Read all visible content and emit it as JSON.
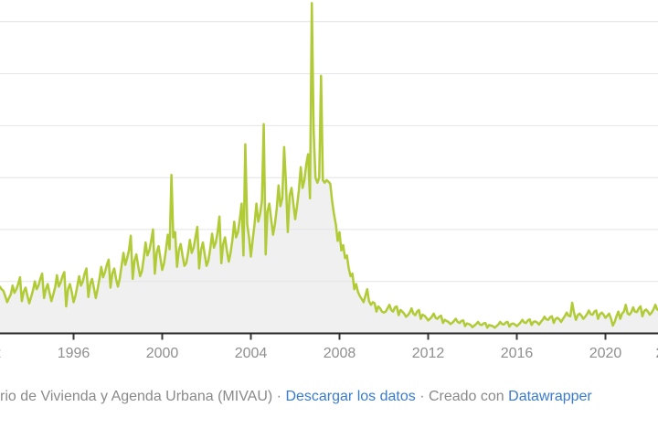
{
  "chart_data": {
    "type": "area",
    "title": "",
    "description": "Monthly time series (line with light gray area fill) from late 1992 to 2022; long rise through the 1990s and 2000s, extreme spike in late 2006, collapse 2008-2013, shallow recovery afterwards. Y-axis labels are cropped out of the visible frame.",
    "x_unit": "decimal_year",
    "x_start": 1992.6667,
    "x_step_years": 0.0833333,
    "x_tick_years": [
      1996,
      2000,
      2004,
      2008,
      2012,
      2016,
      2020
    ],
    "edge_partial_tick_years": [
      1992,
      2023
    ],
    "y_axis": {
      "labels_visible": false,
      "unit": "gridline intervals (numeric y labels cropped off left edge)",
      "gridlines": [
        1,
        2,
        3,
        4,
        5,
        6
      ],
      "ylim": [
        0,
        6.5
      ]
    },
    "peak": {
      "x_decimal_year": 2006.75,
      "value": 6.36
    },
    "values": [
      0.9,
      0.85,
      0.82,
      0.72,
      0.6,
      0.68,
      0.75,
      0.92,
      0.78,
      0.85,
      0.95,
      1.08,
      0.62,
      0.8,
      0.88,
      0.72,
      0.58,
      0.7,
      0.82,
      1.0,
      0.85,
      0.92,
      1.05,
      1.15,
      0.68,
      0.85,
      0.95,
      0.78,
      0.62,
      0.75,
      0.88,
      1.12,
      0.9,
      0.98,
      1.1,
      1.18,
      0.52,
      0.85,
      0.95,
      0.8,
      0.6,
      0.72,
      0.9,
      1.1,
      0.92,
      1.0,
      1.15,
      1.25,
      0.7,
      0.95,
      1.05,
      0.88,
      0.68,
      0.85,
      1.05,
      1.28,
      1.08,
      1.18,
      1.32,
      1.42,
      0.88,
      1.15,
      1.25,
      1.05,
      0.9,
      1.05,
      1.3,
      1.55,
      1.32,
      1.45,
      1.6,
      1.88,
      1.05,
      1.4,
      1.52,
      1.3,
      1.1,
      1.2,
      1.45,
      1.75,
      1.5,
      1.6,
      1.78,
      2.0,
      1.15,
      1.55,
      1.68,
      1.45,
      1.22,
      1.35,
      1.6,
      1.9,
      1.62,
      3.05,
      1.85,
      1.95,
      1.28,
      1.6,
      1.72,
      1.5,
      1.3,
      1.35,
      1.55,
      1.8,
      1.55,
      1.65,
      1.85,
      2.05,
      1.25,
      1.6,
      1.75,
      1.52,
      1.3,
      1.4,
      1.62,
      1.92,
      1.65,
      1.75,
      1.95,
      2.25,
      1.35,
      1.72,
      1.85,
      1.6,
      1.38,
      1.55,
      1.8,
      2.15,
      1.85,
      1.95,
      2.2,
      2.5,
      1.5,
      3.64,
      2.1,
      1.85,
      1.48,
      1.8,
      2.1,
      2.5,
      2.15,
      2.3,
      2.55,
      4.03,
      1.52,
      2.35,
      2.5,
      2.2,
      1.9,
      2.1,
      2.4,
      2.85,
      2.45,
      2.6,
      3.59,
      2.9,
      1.95,
      2.65,
      2.8,
      2.5,
      2.2,
      2.45,
      2.75,
      3.2,
      2.8,
      2.95,
      3.25,
      3.45,
      2.6,
      6.36,
      3.9,
      3.0,
      2.9,
      3.0,
      4.96,
      2.95,
      2.9,
      2.95,
      2.92,
      2.88,
      2.55,
      2.3,
      2.1,
      1.78,
      1.95,
      1.6,
      1.7,
      1.45,
      1.5,
      1.25,
      1.1,
      1.15,
      0.85,
      0.95,
      0.8,
      0.72,
      0.66,
      0.6,
      0.72,
      0.85,
      0.62,
      0.55,
      0.6,
      0.58,
      0.42,
      0.52,
      0.48,
      0.42,
      0.4,
      0.42,
      0.48,
      0.55,
      0.45,
      0.42,
      0.5,
      0.52,
      0.35,
      0.45,
      0.42,
      0.38,
      0.32,
      0.35,
      0.4,
      0.48,
      0.38,
      0.35,
      0.42,
      0.45,
      0.28,
      0.36,
      0.34,
      0.3,
      0.25,
      0.28,
      0.32,
      0.38,
      0.3,
      0.28,
      0.32,
      0.34,
      0.2,
      0.26,
      0.24,
      0.22,
      0.18,
      0.2,
      0.24,
      0.28,
      0.22,
      0.2,
      0.24,
      0.25,
      0.14,
      0.19,
      0.18,
      0.16,
      0.12,
      0.15,
      0.18,
      0.22,
      0.17,
      0.16,
      0.19,
      0.2,
      0.11,
      0.16,
      0.15,
      0.14,
      0.11,
      0.14,
      0.17,
      0.22,
      0.18,
      0.17,
      0.21,
      0.22,
      0.13,
      0.18,
      0.19,
      0.17,
      0.14,
      0.17,
      0.21,
      0.26,
      0.21,
      0.2,
      0.25,
      0.27,
      0.16,
      0.22,
      0.23,
      0.21,
      0.17,
      0.22,
      0.26,
      0.32,
      0.27,
      0.26,
      0.31,
      0.33,
      0.2,
      0.28,
      0.3,
      0.27,
      0.22,
      0.28,
      0.33,
      0.4,
      0.34,
      0.33,
      0.59,
      0.4,
      0.26,
      0.35,
      0.38,
      0.34,
      0.28,
      0.32,
      0.37,
      0.44,
      0.37,
      0.36,
      0.42,
      0.44,
      0.28,
      0.37,
      0.4,
      0.36,
      0.3,
      0.34,
      0.38,
      0.28,
      0.15,
      0.22,
      0.33,
      0.42,
      0.28,
      0.38,
      0.42,
      0.55,
      0.38,
      0.36,
      0.41,
      0.5,
      0.42,
      0.41,
      0.48,
      0.52,
      0.33,
      0.43,
      0.46,
      0.42,
      0.36,
      0.4,
      0.46,
      0.55,
      0.46,
      0.45,
      0.5
    ]
  },
  "footer": {
    "source_text": "rio de Vivienda y Agenda Urbana (MIVAU)",
    "separator": " · ",
    "download_label": "Descargar los datos",
    "created_with": "Creado con ",
    "datawrapper_label": "Datawrapper"
  },
  "colors": {
    "line": "#b0cb35",
    "area_fill": "#f0f0f0",
    "gridline": "#e4e4e4",
    "axis_line": "#262626",
    "tick": "#3a3a3a",
    "axis_label": "#8f8f8f",
    "footer_text": "#8a8a8a",
    "link": "#3a7bce"
  }
}
